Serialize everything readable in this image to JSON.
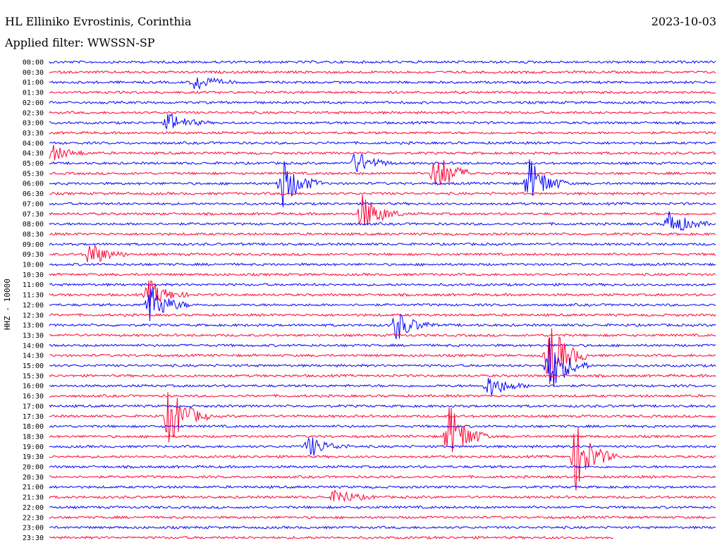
{
  "header": {
    "station": "HL Elliniko Evrostinis, Corinthia",
    "date": "2023-10-03",
    "filter": "Applied filter: WWSSN-SP",
    "channel_label": "HHZ - 10000"
  },
  "colors": {
    "trace_a": "#0000ff",
    "trace_b": "#ff0033"
  },
  "chart_data": {
    "type": "line",
    "title": "HL Elliniko Evrostinis, Corinthia",
    "date": "2023-10-03",
    "ylabel": "HHZ - 10000",
    "rows": [
      "00:00",
      "00:30",
      "01:00",
      "01:30",
      "02:00",
      "02:30",
      "03:00",
      "03:30",
      "04:00",
      "04:30",
      "05:00",
      "05:30",
      "06:00",
      "06:30",
      "07:00",
      "07:30",
      "08:00",
      "08:30",
      "09:00",
      "09:30",
      "10:00",
      "10:30",
      "11:00",
      "11:30",
      "12:00",
      "12:30",
      "13:00",
      "13:30",
      "14:00",
      "14:30",
      "15:00",
      "15:30",
      "16:00",
      "16:30",
      "17:00",
      "17:30",
      "18:00",
      "18:30",
      "19:00",
      "19:30",
      "20:00",
      "20:30",
      "21:00",
      "21:30",
      "22:00",
      "22:30",
      "23:00",
      "23:30"
    ],
    "grid": false,
    "series": [
      {
        "values_description": "alternating helicorder traces; each row spans 30 minutes"
      }
    ],
    "events": [
      {
        "row": "01:00",
        "t": 0.22,
        "amp": 0.9
      },
      {
        "row": "03:00",
        "t": 0.18,
        "amp": 1.0
      },
      {
        "row": "04:30",
        "t": 0.0,
        "amp": 1.0
      },
      {
        "row": "05:00",
        "t": 0.46,
        "amp": 1.2
      },
      {
        "row": "05:30",
        "t": 0.58,
        "amp": 2.2
      },
      {
        "row": "06:00",
        "t": 0.35,
        "amp": 2.5
      },
      {
        "row": "06:00",
        "t": 0.72,
        "amp": 2.5
      },
      {
        "row": "07:30",
        "t": 0.47,
        "amp": 2.0
      },
      {
        "row": "08:00",
        "t": 0.93,
        "amp": 1.4
      },
      {
        "row": "09:30",
        "t": 0.06,
        "amp": 1.3
      },
      {
        "row": "11:30",
        "t": 0.15,
        "amp": 1.5
      },
      {
        "row": "12:00",
        "t": 0.15,
        "amp": 2.2
      },
      {
        "row": "13:00",
        "t": 0.52,
        "amp": 1.6
      },
      {
        "row": "14:30",
        "t": 0.75,
        "amp": 3.5
      },
      {
        "row": "15:00",
        "t": 0.75,
        "amp": 3.0
      },
      {
        "row": "16:00",
        "t": 0.66,
        "amp": 1.2
      },
      {
        "row": "17:30",
        "t": 0.18,
        "amp": 3.2
      },
      {
        "row": "18:30",
        "t": 0.6,
        "amp": 3.2
      },
      {
        "row": "19:00",
        "t": 0.39,
        "amp": 1.1
      },
      {
        "row": "19:30",
        "t": 0.79,
        "amp": 3.5
      },
      {
        "row": "21:30",
        "t": 0.43,
        "amp": 0.9
      }
    ]
  }
}
